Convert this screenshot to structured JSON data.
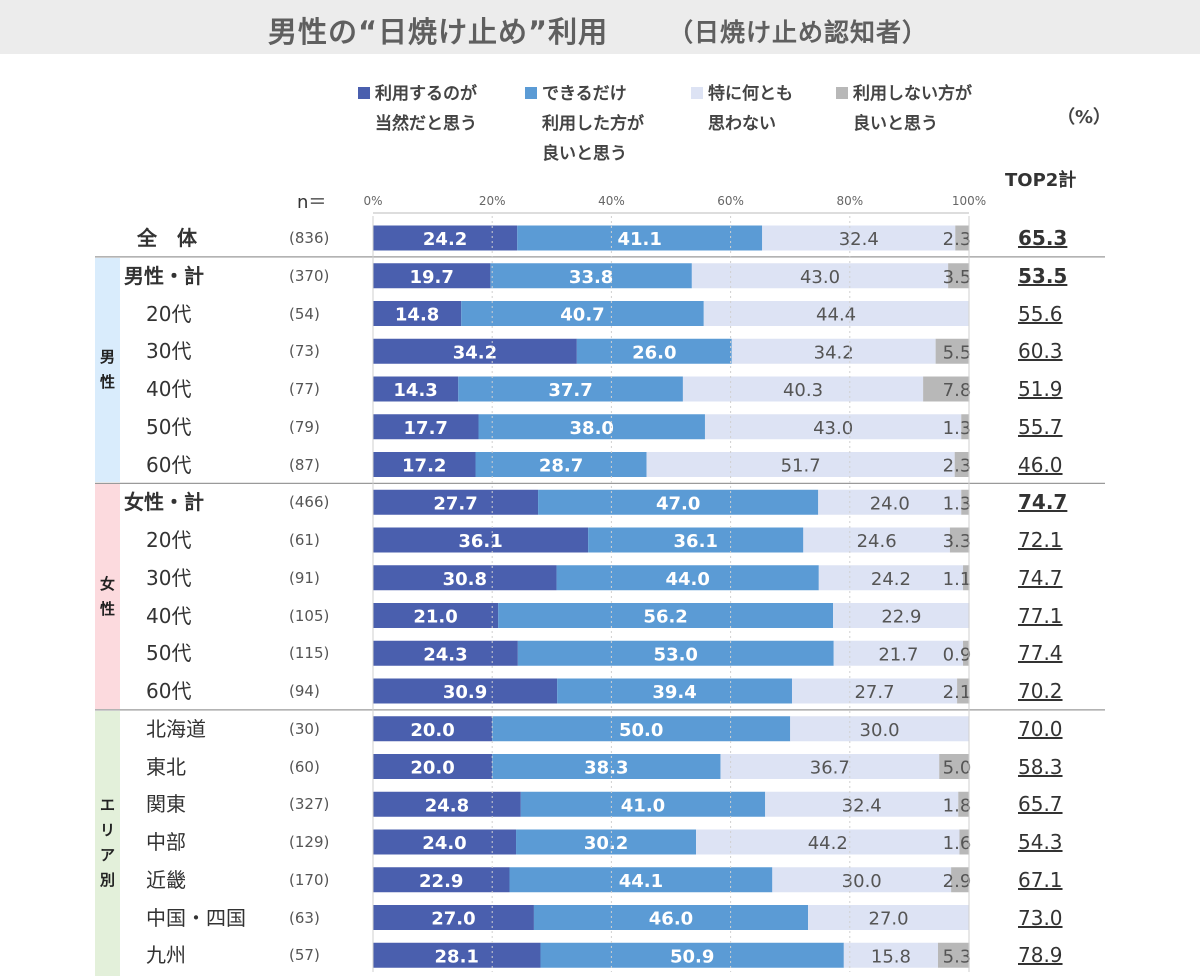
{
  "title": "男性の“日焼け止め”利用",
  "subtitle": "（日焼け止め認知者）",
  "unit_label": "（%）",
  "top2_header": "TOP2計",
  "n_label": "n＝",
  "colors": {
    "series": [
      "#4a5fae",
      "#5b9bd5",
      "#dde3f4",
      "#b8b8b8"
    ],
    "title_bar": "#ececec",
    "group_male": "#d9ecfc",
    "group_female": "#fcdade",
    "group_area": "#e3f0da"
  },
  "groups": [
    {
      "label": "男\n性"
    },
    {
      "label": "女\n性"
    },
    {
      "label": "エ\nリ\nア\n別"
    }
  ],
  "chart_data": {
    "type": "bar",
    "orientation": "horizontal",
    "stacked": true,
    "xlim": [
      0,
      100
    ],
    "x_ticks": [
      "0%",
      "20%",
      "40%",
      "60%",
      "80%",
      "100%"
    ],
    "series": [
      {
        "name": "利用するのが\n当然だと思う",
        "values": [
          24.2,
          19.7,
          14.8,
          34.2,
          14.3,
          17.7,
          17.2,
          27.7,
          36.1,
          30.8,
          21.0,
          24.3,
          30.9,
          20.0,
          20.0,
          24.8,
          24.0,
          22.9,
          27.0,
          28.1
        ]
      },
      {
        "name": "できるだけ\n利用した方が\n良いと思う",
        "values": [
          41.1,
          33.8,
          40.7,
          26.0,
          37.7,
          38.0,
          28.7,
          47.0,
          36.1,
          44.0,
          56.2,
          53.0,
          39.4,
          50.0,
          38.3,
          41.0,
          30.2,
          44.1,
          46.0,
          50.9
        ]
      },
      {
        "name": "特に何とも\n思わない",
        "values": [
          32.4,
          43.0,
          44.4,
          34.2,
          40.3,
          43.0,
          51.7,
          24.0,
          24.6,
          24.2,
          22.9,
          21.7,
          27.7,
          30.0,
          36.7,
          32.4,
          44.2,
          30.0,
          27.0,
          15.8
        ]
      },
      {
        "name": "利用しない方が\n良いと思う",
        "values": [
          2.3,
          3.5,
          0,
          5.5,
          7.8,
          1.3,
          2.3,
          1.3,
          3.3,
          1.1,
          0,
          0.9,
          2.1,
          0,
          5.0,
          1.8,
          1.6,
          2.9,
          0,
          5.3
        ]
      }
    ],
    "value_labels": [
      [
        "24.2",
        "19.7",
        "14.8",
        "34.2",
        "14.3",
        "17.7",
        "17.2",
        "27.7",
        "36.1",
        "30.8",
        "21.0",
        "24.3",
        "30.9",
        "20.0",
        "20.0",
        "24.8",
        "24.0",
        "22.9",
        "27.0",
        "28.1"
      ],
      [
        "41.1",
        "33.8",
        "40.7",
        "26.0",
        "37.7",
        "38.0",
        "28.7",
        "47.0",
        "36.1",
        "44.0",
        "56.2",
        "53.0",
        "39.4",
        "50.0",
        "38.3",
        "41.0",
        "30.2",
        "44.1",
        "46.0",
        "50.9"
      ],
      [
        "32.4",
        "43.0",
        "44.4",
        "34.2",
        "40.3",
        "43.0",
        "51.7",
        "24.0",
        "24.6",
        "24.2",
        "22.9",
        "21.7",
        "27.7",
        "30.0",
        "36.7",
        "32.4",
        "44.2",
        "30.0",
        "27.0",
        "15.8"
      ],
      [
        "2.3",
        "3.5",
        "",
        "5.5",
        "7.8",
        "1.3",
        "2.3",
        "1.3",
        "3.3",
        "1.1",
        "",
        "0.9",
        "2.1",
        "",
        "5.0",
        "1.8",
        "1.6",
        "2.9",
        "",
        "5.3"
      ]
    ],
    "rows": [
      {
        "label": "全　体",
        "n": "(836)",
        "top2": "65.3",
        "bold": true,
        "group": null
      },
      {
        "label": "男性・計",
        "n": "(370)",
        "top2": "53.5",
        "bold": true,
        "group": 0
      },
      {
        "label": "20代",
        "n": "(54)",
        "top2": "55.6",
        "bold": false,
        "group": 0
      },
      {
        "label": "30代",
        "n": "(73)",
        "top2": "60.3",
        "bold": false,
        "group": 0
      },
      {
        "label": "40代",
        "n": "(77)",
        "top2": "51.9",
        "bold": false,
        "group": 0
      },
      {
        "label": "50代",
        "n": "(79)",
        "top2": "55.7",
        "bold": false,
        "group": 0
      },
      {
        "label": "60代",
        "n": "(87)",
        "top2": "46.0",
        "bold": false,
        "group": 0
      },
      {
        "label": "女性・計",
        "n": "(466)",
        "top2": "74.7",
        "bold": true,
        "group": 1
      },
      {
        "label": "20代",
        "n": "(61)",
        "top2": "72.1",
        "bold": false,
        "group": 1
      },
      {
        "label": "30代",
        "n": "(91)",
        "top2": "74.7",
        "bold": false,
        "group": 1
      },
      {
        "label": "40代",
        "n": "(105)",
        "top2": "77.1",
        "bold": false,
        "group": 1
      },
      {
        "label": "50代",
        "n": "(115)",
        "top2": "77.4",
        "bold": false,
        "group": 1
      },
      {
        "label": "60代",
        "n": "(94)",
        "top2": "70.2",
        "bold": false,
        "group": 1
      },
      {
        "label": "北海道",
        "n": "(30)",
        "top2": "70.0",
        "bold": false,
        "group": 2
      },
      {
        "label": "東北",
        "n": "(60)",
        "top2": "58.3",
        "bold": false,
        "group": 2
      },
      {
        "label": "関東",
        "n": "(327)",
        "top2": "65.7",
        "bold": false,
        "group": 2
      },
      {
        "label": "中部",
        "n": "(129)",
        "top2": "54.3",
        "bold": false,
        "group": 2
      },
      {
        "label": "近畿",
        "n": "(170)",
        "top2": "67.1",
        "bold": false,
        "group": 2
      },
      {
        "label": "中国・四国",
        "n": "(63)",
        "top2": "73.0",
        "bold": false,
        "group": 2
      },
      {
        "label": "九州",
        "n": "(57)",
        "top2": "78.9",
        "bold": false,
        "group": 2
      }
    ]
  }
}
